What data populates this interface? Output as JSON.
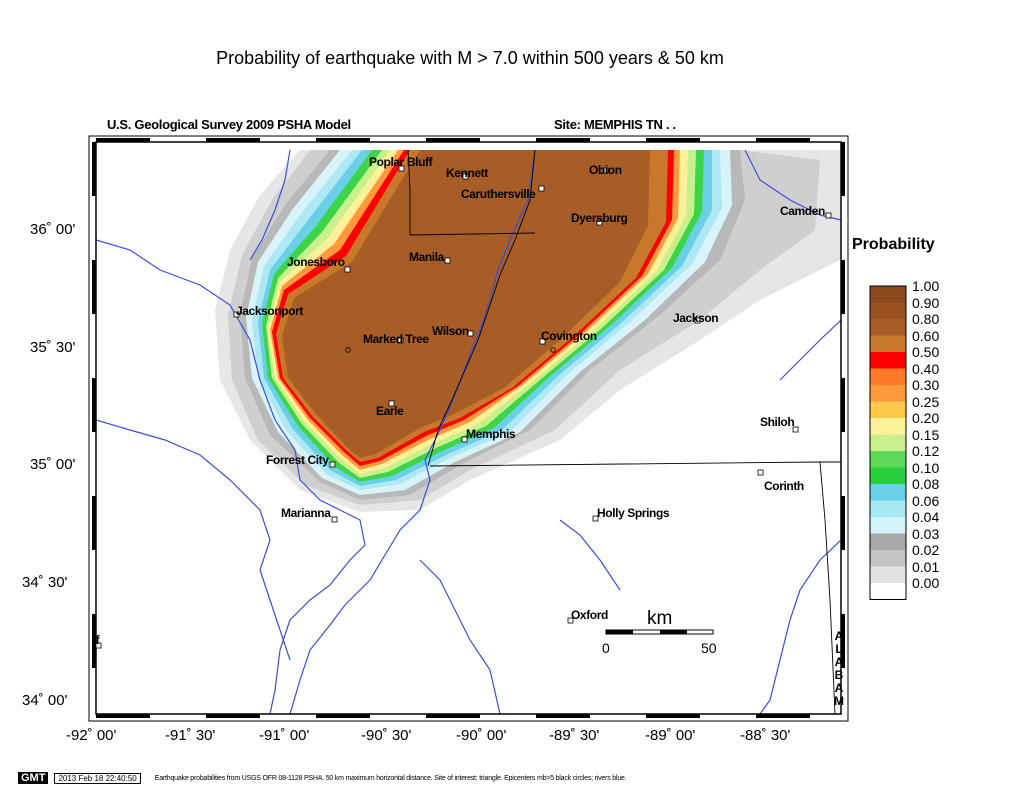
{
  "title": "Probability of earthquake with M > 7.0 within 500 years & 50 km",
  "model_label": "U.S. Geological Survey 2009 PSHA Model",
  "site_label": "Site: MEMPHIS  TN . .",
  "lat_labels": [
    "36˚ 00'",
    "35˚ 30'",
    "35˚ 00'",
    "34˚ 30'",
    "34˚ 00'"
  ],
  "lon_labels": [
    "-92˚ 00'",
    "-91˚ 30'",
    "-91˚ 00'",
    "-90˚ 30'",
    "-90˚ 00'",
    "-89˚ 30'",
    "-89˚ 00'",
    "-88˚ 30'"
  ],
  "cities": [
    {
      "name": "Poplar Bluff"
    },
    {
      "name": "Kennett"
    },
    {
      "name": "Obion"
    },
    {
      "name": "Caruthersville"
    },
    {
      "name": "Dyersburg"
    },
    {
      "name": "Camden"
    },
    {
      "name": "Jonesboro"
    },
    {
      "name": "Manila"
    },
    {
      "name": "Jacksonport"
    },
    {
      "name": "Jackson"
    },
    {
      "name": "Marked Tree"
    },
    {
      "name": "Wilson"
    },
    {
      "name": "Covington"
    },
    {
      "name": "Earle"
    },
    {
      "name": "Memphis"
    },
    {
      "name": "Shiloh"
    },
    {
      "name": "Forrest City"
    },
    {
      "name": "Corinth"
    },
    {
      "name": "Marianna"
    },
    {
      "name": "Holly Springs"
    },
    {
      "name": "Oxford"
    },
    {
      "name": "ff"
    }
  ],
  "legend": {
    "title": "Probability",
    "entries": [
      {
        "label": "1.00",
        "color": "#8a4a1e"
      },
      {
        "label": "0.90",
        "color": "#9a5222"
      },
      {
        "label": "0.80",
        "color": "#a85c26"
      },
      {
        "label": "0.60",
        "color": "#c8782a"
      },
      {
        "label": "0.50",
        "color": "#ff0000"
      },
      {
        "label": "0.40",
        "color": "#ff7a28"
      },
      {
        "label": "0.30",
        "color": "#ff9a3c"
      },
      {
        "label": "0.25",
        "color": "#ffc84a"
      },
      {
        "label": "0.20",
        "color": "#fff09a"
      },
      {
        "label": "0.15",
        "color": "#c8f08c"
      },
      {
        "label": "0.12",
        "color": "#5ed858"
      },
      {
        "label": "0.10",
        "color": "#28d040"
      },
      {
        "label": "0.08",
        "color": "#6ad0e8"
      },
      {
        "label": "0.06",
        "color": "#a6e8f4"
      },
      {
        "label": "0.04",
        "color": "#d2f4f8"
      },
      {
        "label": "0.03",
        "color": "#a8a8a8"
      },
      {
        "label": "0.02",
        "color": "#c4c4c4"
      },
      {
        "label": "0.01",
        "color": "#e2e2e2"
      },
      {
        "label": "0.00",
        "color": "#ffffff"
      }
    ]
  },
  "scale_bar": {
    "unit": "km",
    "start": "0",
    "end": "50"
  },
  "state_label": "ALABAM",
  "footer": {
    "logo": "GMT",
    "timestamp": "2013 Feb 18 22:40:50",
    "caption": "Earthquake probabilities from USGS OFR 08-1128 PSHA. 50 km maximum horizontal distance. Site of interest: triangle. Epicenters mb>5 black circles; rivers blue."
  },
  "colors": {
    "river": "#3a4fd8",
    "border": "#000000"
  }
}
